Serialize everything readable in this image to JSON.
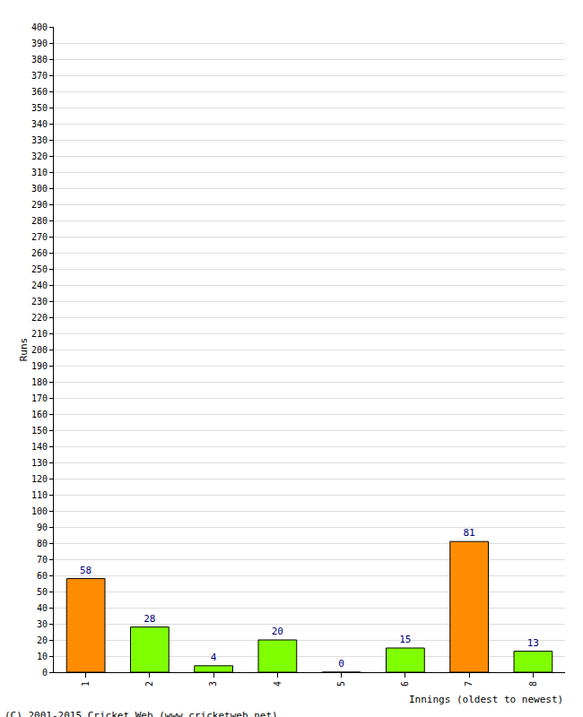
{
  "chart_data": {
    "type": "bar",
    "x_label": "Innings (oldest to newest)",
    "y_label": "Runs",
    "annotations": [
      "(C) 2001-2015 Cricket Web (www.cricketweb.net)"
    ],
    "categories": [
      "1",
      "2",
      "3",
      "4",
      "5",
      "6",
      "7",
      "8"
    ],
    "values": [
      58,
      28,
      4,
      20,
      0,
      15,
      81,
      13
    ],
    "colors": [
      "#ff8c00",
      "#80ff00",
      "#80ff00",
      "#80ff00",
      "#80ff00",
      "#80ff00",
      "#ff8c00",
      "#80ff00"
    ],
    "ylim": [
      0,
      400
    ],
    "yticks": [
      0,
      10,
      20,
      30,
      40,
      50,
      60,
      70,
      80,
      90,
      100,
      110,
      120,
      130,
      140,
      150,
      160,
      170,
      180,
      190,
      200,
      210,
      220,
      230,
      240,
      250,
      260,
      270,
      280,
      290,
      300,
      310,
      320,
      330,
      340,
      350,
      360,
      370,
      380,
      390,
      400
    ],
    "grid": true,
    "data_labels": true
  }
}
